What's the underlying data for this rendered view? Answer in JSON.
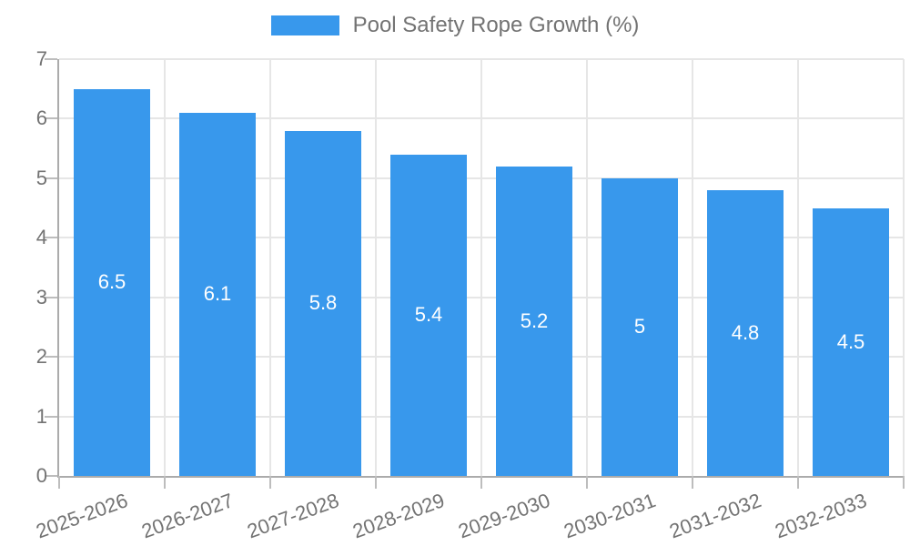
{
  "chart_data": {
    "type": "bar",
    "title": "",
    "legend": "Pool Safety Rope Growth (%)",
    "legend_position": "top-center",
    "categories": [
      "2025-2026",
      "2026-2027",
      "2027-2028",
      "2028-2029",
      "2029-2030",
      "2030-2031",
      "2031-2032",
      "2032-2033"
    ],
    "values": [
      6.5,
      6.1,
      5.8,
      5.4,
      5.2,
      5,
      4.8,
      4.5
    ],
    "value_labels": [
      "6.5",
      "6.1",
      "5.8",
      "5.4",
      "5.2",
      "5",
      "4.8",
      "4.5"
    ],
    "xlabel": "",
    "ylabel": "",
    "ylim": [
      0,
      7
    ],
    "yticks": [
      0,
      1,
      2,
      3,
      4,
      5,
      6,
      7
    ],
    "grid": true,
    "x_label_rotation_deg": -20,
    "colors": {
      "bar": "#3898ec",
      "bar_value_text": "#ffffff",
      "grid": "#e6e6e6",
      "axis": "#ababab",
      "tick": "#bdbdbd",
      "text": "#737373"
    }
  }
}
